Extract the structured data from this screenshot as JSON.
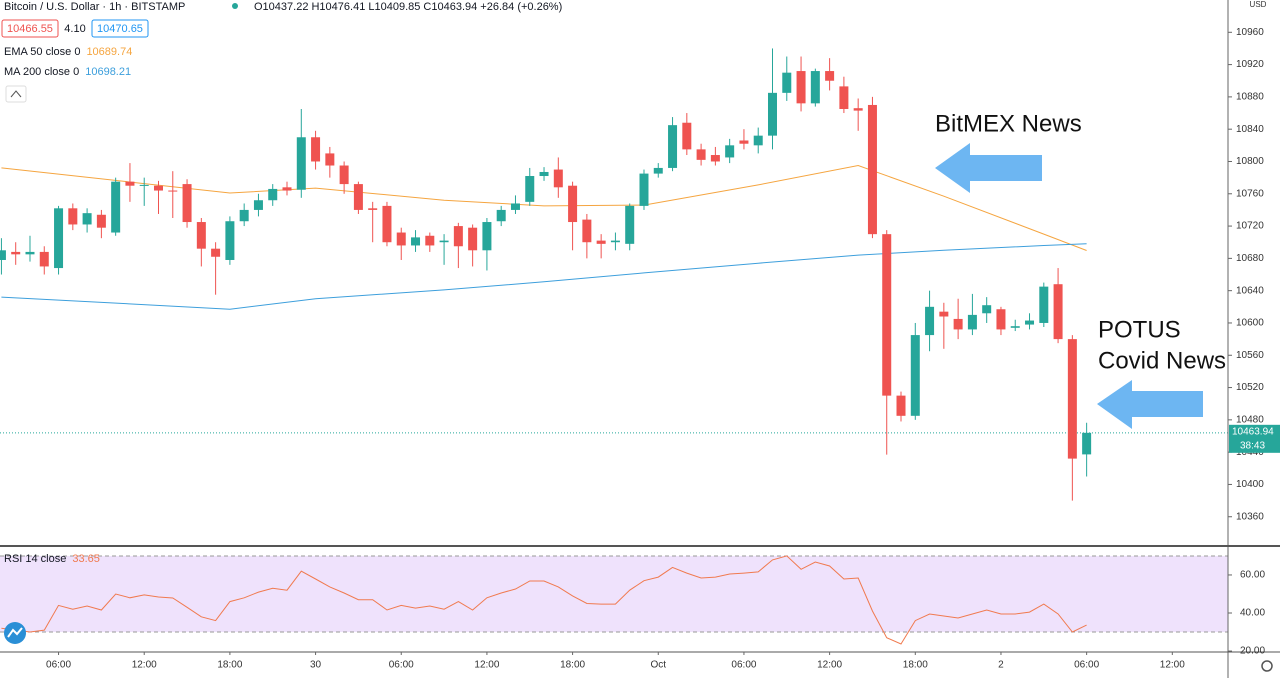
{
  "header": {
    "symbol": "Bitcoin / U.S. Dollar · 1h · BITSTAMP",
    "ohlc": "O10437.22 H10476.41 L10409.85 C10463.94 +26.84 (+0.26%)",
    "bid": "10466.55",
    "spread": "4.10",
    "ask": "10470.65"
  },
  "chart_data": [
    {
      "type": "candlestick",
      "x": [
        -22,
        -21,
        -20,
        -19,
        -18,
        -17,
        -16,
        -15,
        -14,
        -13,
        -12,
        -11,
        -10,
        -9,
        -8,
        -7,
        -6,
        -5,
        -4,
        -3,
        -2,
        -1,
        0,
        1,
        2,
        3,
        4,
        5,
        6,
        7,
        8,
        9,
        10,
        11,
        12,
        13,
        14,
        15,
        16,
        17,
        18,
        19,
        20,
        21,
        22,
        23,
        24,
        25,
        26,
        27,
        28,
        29,
        30,
        31,
        32,
        33,
        34,
        35,
        36,
        37,
        38,
        39,
        40,
        41,
        42,
        43,
        44,
        45,
        46,
        47,
        48,
        49,
        50,
        51,
        52,
        53,
        54
      ],
      "open": [
        10678,
        10688,
        10685,
        10688,
        10668,
        10742,
        10722,
        10734,
        10712,
        10775,
        10770,
        10770,
        10764,
        10772,
        10725,
        10692,
        10678,
        10726,
        10740,
        10752,
        10768,
        10765,
        10830,
        10810,
        10795,
        10772,
        10742,
        10745,
        10712,
        10696,
        10708,
        10700,
        10720,
        10718,
        10690,
        10726,
        10740,
        10750,
        10782,
        10790,
        10770,
        10728,
        10702,
        10700,
        10698,
        10745,
        10785,
        10792,
        10848,
        10815,
        10808,
        10805,
        10826,
        10820,
        10832,
        10885,
        10912,
        10872,
        10912,
        10893,
        10866,
        10870,
        10710,
        10510,
        10485,
        10585,
        10614,
        10605,
        10592,
        10612,
        10617,
        10594,
        10598,
        10600,
        10648,
        10580,
        10437.22
      ],
      "high": [
        10705,
        10700,
        10708,
        10695,
        10745,
        10748,
        10742,
        10740,
        10780,
        10798,
        10780,
        10776,
        10788,
        10778,
        10730,
        10700,
        10732,
        10748,
        10760,
        10772,
        10775,
        10865,
        10838,
        10818,
        10800,
        10775,
        10750,
        10750,
        10718,
        10715,
        10712,
        10710,
        10724,
        10722,
        10730,
        10745,
        10758,
        10792,
        10793,
        10805,
        10775,
        10735,
        10710,
        10712,
        10748,
        10790,
        10798,
        10855,
        10860,
        10822,
        10818,
        10828,
        10840,
        10842,
        10940,
        10930,
        10930,
        10915,
        10928,
        10905,
        10878,
        10880,
        10715,
        10515,
        10600,
        10640,
        10625,
        10630,
        10636,
        10632,
        10620,
        10604,
        10612,
        10650,
        10668,
        10585,
        10476.41
      ],
      "low": [
        10660,
        10672,
        10676,
        10660,
        10660,
        10715,
        10712,
        10705,
        10708,
        10750,
        10745,
        10735,
        10730,
        10718,
        10670,
        10635,
        10672,
        10720,
        10732,
        10745,
        10758,
        10755,
        10790,
        10780,
        10760,
        10735,
        10700,
        10695,
        10678,
        10688,
        10688,
        10672,
        10668,
        10670,
        10665,
        10720,
        10735,
        10745,
        10776,
        10755,
        10690,
        10680,
        10680,
        10690,
        10690,
        10740,
        10780,
        10788,
        10808,
        10795,
        10795,
        10798,
        10815,
        10810,
        10815,
        10875,
        10862,
        10868,
        10888,
        10860,
        10838,
        10705,
        10437,
        10478,
        10480,
        10565,
        10568,
        10580,
        10585,
        10600,
        10585,
        10590,
        10592,
        10595,
        10575,
        10380,
        10409.85
      ],
      "close": [
        10690,
        10685,
        10688,
        10670,
        10742,
        10722,
        10736,
        10718,
        10775,
        10770,
        10771,
        10764,
        10763,
        10725,
        10692,
        10682,
        10726,
        10740,
        10752,
        10766,
        10764,
        10830,
        10800,
        10795,
        10772,
        10740,
        10740,
        10700,
        10696,
        10706,
        10696,
        10702,
        10695,
        10690,
        10725,
        10740,
        10748,
        10782,
        10787,
        10768,
        10725,
        10700,
        10698,
        10702,
        10745,
        10785,
        10792,
        10845,
        10815,
        10802,
        10800,
        10820,
        10822,
        10832,
        10885,
        10910,
        10872,
        10912,
        10900,
        10865,
        10863,
        10710,
        10510,
        10485,
        10585,
        10620,
        10608,
        10592,
        10610,
        10622,
        10592,
        10596,
        10603,
        10645,
        10580,
        10432,
        10463.94
      ],
      "xlim": [
        -22.1,
        63.9
      ],
      "ylim": [
        10325,
        11000
      ],
      "yticks": [
        10360,
        10400,
        10440,
        10480,
        10520,
        10560,
        10600,
        10640,
        10680,
        10720,
        10760,
        10800,
        10840,
        10880,
        10920,
        10960
      ],
      "xticks": [
        {
          "value": -18,
          "label": "06:00"
        },
        {
          "value": -12,
          "label": "12:00"
        },
        {
          "value": -6,
          "label": "18:00"
        },
        {
          "value": 0,
          "label": "30"
        },
        {
          "value": 6,
          "label": "06:00"
        },
        {
          "value": 12,
          "label": "12:00"
        },
        {
          "value": 18,
          "label": "18:00"
        },
        {
          "value": 24,
          "label": "Oct"
        },
        {
          "value": 30,
          "label": "06:00"
        },
        {
          "value": 36,
          "label": "12:00"
        },
        {
          "value": 42,
          "label": "18:00"
        },
        {
          "value": 48,
          "label": "2"
        },
        {
          "value": 54,
          "label": "06:00"
        },
        {
          "value": 60,
          "label": "12:00"
        }
      ],
      "colors": {
        "up": "#26a69a",
        "down": "#ef5350"
      },
      "axis_unit": "USD",
      "indicators": [
        {
          "name": "EMA 50 close 0",
          "color": "#f5a540",
          "x": [
            -22,
            -6,
            0,
            9,
            16,
            23,
            31,
            38,
            44,
            51,
            54
          ],
          "values": [
            10792,
            10761,
            10767,
            10752,
            10745,
            10746,
            10771,
            10795,
            10757,
            10710,
            10689.74
          ]
        },
        {
          "name": "MA 200 close 0",
          "color": "#3d9fdc",
          "x": [
            -22,
            -6,
            0,
            9,
            16,
            23,
            31,
            38,
            44,
            51,
            54
          ],
          "values": [
            10632,
            10617,
            10630,
            10641,
            10651,
            10662,
            10674,
            10684,
            10690,
            10696,
            10698.21
          ]
        }
      ],
      "last_price": {
        "value": 10463.94,
        "countdown": "38:43"
      },
      "annotations": [
        {
          "text": [
            "BitMEX News"
          ]
        },
        {
          "text": [
            "POTUS",
            "Covid News"
          ]
        }
      ]
    },
    {
      "type": "line",
      "name": "RSI 14 close",
      "color": "#f07a4f",
      "band_color": "#efe2fc",
      "values": [
        32,
        31,
        30,
        31,
        44,
        42,
        43.7,
        41.6,
        50,
        48,
        49.5,
        48.4,
        47.9,
        43,
        38,
        36,
        46,
        48,
        51,
        53,
        52,
        62,
        57.9,
        53.7,
        50.5,
        47,
        47,
        41.6,
        44,
        42.6,
        43.7,
        42,
        46,
        41.6,
        48,
        50.5,
        52.6,
        56.8,
        56.8,
        53.7,
        49,
        45,
        44.7,
        44.7,
        52,
        57,
        58.9,
        64,
        61,
        58.4,
        58.9,
        60.5,
        61,
        61.6,
        67.9,
        70,
        63,
        66.8,
        64.7,
        57.9,
        58.4,
        41,
        27,
        23.7,
        36,
        39.5,
        38.4,
        37.4,
        39.5,
        41.6,
        39.5,
        39.5,
        40.5,
        44.7,
        39.5,
        30,
        33.65
      ],
      "ylim": [
        19.5,
        74.7
      ],
      "yticks": [
        {
          "value": 20,
          "label": "20.00"
        },
        {
          "value": 40,
          "label": "40.00"
        },
        {
          "value": 60,
          "label": "60.00"
        }
      ],
      "bands": [
        30,
        70
      ]
    }
  ]
}
